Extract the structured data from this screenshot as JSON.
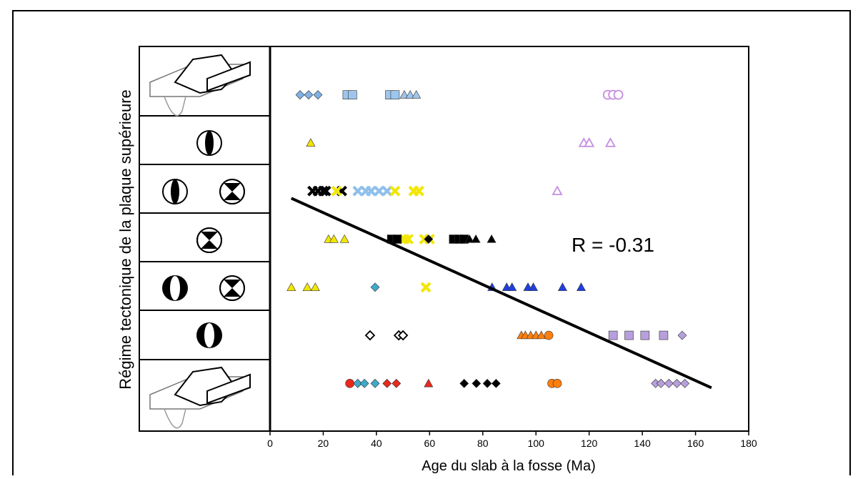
{
  "chart_data": {
    "type": "scatter",
    "x_label": "Age du slab à la fosse (Ma)",
    "y_label": "Régime tectonique de la plaque supérieure",
    "annotation": "R = -0.31",
    "xlim": [
      0,
      180
    ],
    "xticks": [
      0,
      20,
      40,
      60,
      80,
      100,
      120,
      140,
      160,
      180
    ],
    "ylim": [
      0.5,
      7.5
    ],
    "series": [
      {
        "color": "#7fb2e5",
        "marker": "diamond",
        "filled": true,
        "x": [
          11.3,
          14.5,
          18
        ],
        "y": [
          7,
          7,
          7
        ]
      },
      {
        "color": "#9ec5ec",
        "marker": "square",
        "filled": true,
        "x": [
          29,
          31,
          45,
          47
        ],
        "y": [
          7,
          7,
          7,
          7
        ]
      },
      {
        "color": "#9ec5ec",
        "marker": "triangle",
        "filled": true,
        "x": [
          50.5,
          52.7,
          55
        ],
        "y": [
          7,
          7,
          7
        ]
      },
      {
        "color": "#c58de0",
        "marker": "circle",
        "filled": false,
        "x": [
          127,
          129,
          131
        ],
        "y": [
          7,
          7,
          7
        ]
      },
      {
        "color": "#f2e600",
        "marker": "triangle",
        "filled": true,
        "x": [
          15.3,
          22,
          24,
          28,
          8,
          14,
          17
        ],
        "y": [
          6,
          4,
          4,
          4,
          3,
          3,
          3
        ]
      },
      {
        "color": "#c58de0",
        "marker": "triangle",
        "filled": false,
        "x": [
          118,
          120,
          128,
          108
        ],
        "y": [
          6,
          6,
          6,
          5
        ]
      },
      {
        "color": "#000000",
        "marker": "x",
        "filled": true,
        "x": [
          16,
          18,
          20,
          21,
          27
        ],
        "y": [
          5,
          5,
          5,
          5,
          5
        ]
      },
      {
        "color": "#8fc0ea",
        "marker": "x",
        "filled": true,
        "x": [
          33,
          36,
          38,
          41,
          44
        ],
        "y": [
          5,
          5,
          5,
          5,
          5
        ]
      },
      {
        "color": "#f2e600",
        "marker": "x",
        "filled": true,
        "x": [
          25,
          47,
          54,
          56,
          50.5,
          52,
          58,
          60,
          58.6
        ],
        "y": [
          5,
          5,
          5,
          5,
          4,
          4,
          4,
          4,
          3
        ]
      },
      {
        "color": "#000000",
        "marker": "square",
        "filled": true,
        "x": [
          45.7,
          47.8,
          69,
          71,
          73
        ],
        "y": [
          4,
          4,
          4,
          4,
          4
        ]
      },
      {
        "color": "#000000",
        "marker": "diamond",
        "filled": true,
        "x": [
          59.6,
          73,
          77.6,
          81.7,
          85
        ],
        "y": [
          4,
          1,
          1,
          1,
          1
        ]
      },
      {
        "color": "#000000",
        "marker": "triangle",
        "filled": true,
        "x": [
          75,
          77.4,
          83.3
        ],
        "y": [
          4,
          4,
          4
        ]
      },
      {
        "color": "#3fa9c9",
        "marker": "diamond",
        "filled": true,
        "x": [
          39.5,
          33,
          35.5,
          39.5
        ],
        "y": [
          3,
          1,
          1,
          1
        ]
      },
      {
        "color": "#1f3fe0",
        "marker": "triangle",
        "filled": true,
        "x": [
          83.5,
          89,
          91,
          97,
          99,
          110,
          117
        ],
        "y": [
          3,
          3,
          3,
          3,
          3,
          3,
          3
        ]
      },
      {
        "color": "#000000",
        "marker": "diamond",
        "filled": false,
        "x": [
          37.6,
          48.4,
          50
        ],
        "y": [
          2,
          2,
          2
        ]
      },
      {
        "color": "#ff7f0e",
        "marker": "triangle",
        "filled": true,
        "x": [
          94.5,
          96,
          98,
          100,
          102
        ],
        "y": [
          2,
          2,
          2,
          2,
          2
        ]
      },
      {
        "color": "#ff7f0e",
        "marker": "circle",
        "filled": true,
        "x": [
          104.8,
          106,
          108
        ],
        "y": [
          2,
          1,
          1
        ]
      },
      {
        "color": "#b79fdc",
        "marker": "square",
        "filled": true,
        "x": [
          129,
          135,
          141,
          148
        ],
        "y": [
          2,
          2,
          2,
          2
        ]
      },
      {
        "color": "#b79fdc",
        "marker": "diamond",
        "filled": true,
        "x": [
          155,
          145,
          147,
          150,
          153,
          156
        ],
        "y": [
          2,
          1,
          1,
          1,
          1,
          1
        ]
      },
      {
        "color": "#e8291c",
        "marker": "circle",
        "filled": true,
        "x": [
          30
        ],
        "y": [
          1
        ]
      },
      {
        "color": "#e8291c",
        "marker": "diamond",
        "filled": true,
        "x": [
          44,
          47.5
        ],
        "y": [
          1,
          1
        ]
      },
      {
        "color": "#e8291c",
        "marker": "triangle",
        "filled": true,
        "x": [
          59.6
        ],
        "y": [
          1
        ]
      }
    ],
    "fit": {
      "color": "#000000",
      "x": [
        8,
        166
      ],
      "y": [
        4.85,
        0.91
      ]
    }
  }
}
